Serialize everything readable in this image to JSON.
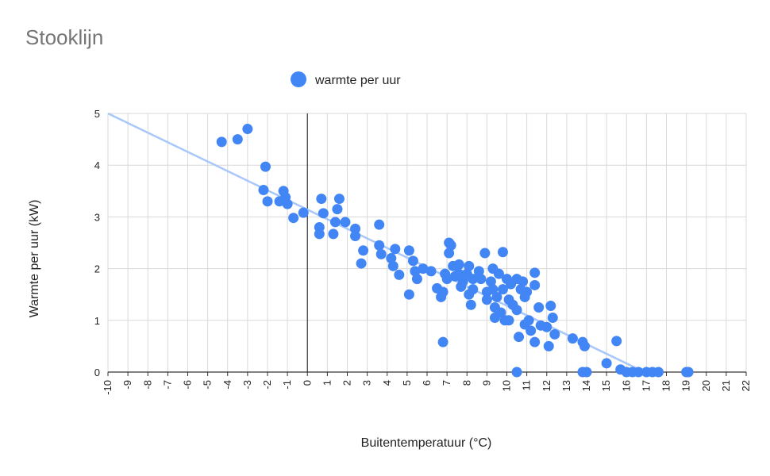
{
  "chart_data": {
    "type": "scatter",
    "title": "Stooklijn",
    "xlabel": "Buitentemperatuur (°C)",
    "ylabel": "Warmte per uur (kW)",
    "xlim": [
      -10,
      22
    ],
    "ylim": [
      0,
      5
    ],
    "x_ticks": [
      "-10",
      "-9",
      "-8",
      "-7",
      "-6",
      "-5",
      "-4",
      "-3",
      "-2",
      "-1",
      "0",
      "1",
      "2",
      "3",
      "4",
      "5",
      "6",
      "7",
      "8",
      "9",
      "10",
      "11",
      "12",
      "13",
      "14",
      "15",
      "16",
      "17",
      "18",
      "19",
      "20",
      "21",
      "22"
    ],
    "y_ticks": [
      "0",
      "1",
      "2",
      "3",
      "4",
      "5"
    ],
    "grid": true,
    "legend_position": "top",
    "colors": {
      "series": "#4285f4",
      "trendline": "#a8c7fa"
    },
    "series": [
      {
        "name": "warmte per uur",
        "points": [
          [
            -4.3,
            4.45
          ],
          [
            -3.5,
            4.5
          ],
          [
            -3.0,
            4.7
          ],
          [
            -2.1,
            3.97
          ],
          [
            -2.2,
            3.52
          ],
          [
            -2.0,
            3.3
          ],
          [
            -1.4,
            3.3
          ],
          [
            -1.2,
            3.5
          ],
          [
            -1.1,
            3.38
          ],
          [
            -1.0,
            3.25
          ],
          [
            -0.7,
            2.98
          ],
          [
            -0.2,
            3.08
          ],
          [
            0.6,
            2.8
          ],
          [
            0.6,
            2.67
          ],
          [
            0.7,
            3.35
          ],
          [
            0.8,
            3.07
          ],
          [
            1.3,
            2.67
          ],
          [
            1.4,
            2.9
          ],
          [
            1.5,
            3.15
          ],
          [
            1.6,
            3.35
          ],
          [
            1.9,
            2.9
          ],
          [
            2.4,
            2.77
          ],
          [
            2.4,
            2.63
          ],
          [
            2.7,
            2.1
          ],
          [
            2.8,
            2.35
          ],
          [
            3.6,
            2.85
          ],
          [
            3.6,
            2.45
          ],
          [
            3.7,
            2.28
          ],
          [
            4.2,
            2.2
          ],
          [
            4.3,
            2.05
          ],
          [
            4.4,
            2.38
          ],
          [
            4.6,
            1.88
          ],
          [
            5.1,
            2.35
          ],
          [
            5.3,
            2.15
          ],
          [
            5.4,
            1.95
          ],
          [
            5.5,
            1.8
          ],
          [
            5.1,
            1.5
          ],
          [
            5.8,
            2.0
          ],
          [
            6.2,
            1.95
          ],
          [
            6.5,
            1.62
          ],
          [
            6.7,
            1.45
          ],
          [
            6.8,
            1.55
          ],
          [
            6.8,
            0.58
          ],
          [
            6.9,
            1.9
          ],
          [
            7.0,
            1.8
          ],
          [
            7.1,
            2.3
          ],
          [
            7.1,
            2.5
          ],
          [
            7.2,
            2.45
          ],
          [
            7.3,
            2.05
          ],
          [
            7.4,
            1.85
          ],
          [
            7.6,
            1.9
          ],
          [
            7.6,
            2.08
          ],
          [
            7.7,
            1.65
          ],
          [
            7.8,
            1.75
          ],
          [
            8.0,
            1.9
          ],
          [
            8.1,
            2.05
          ],
          [
            8.1,
            1.5
          ],
          [
            8.2,
            1.3
          ],
          [
            8.3,
            1.8
          ],
          [
            8.3,
            1.6
          ],
          [
            8.6,
            1.95
          ],
          [
            8.7,
            1.8
          ],
          [
            8.9,
            2.3
          ],
          [
            9.0,
            1.55
          ],
          [
            9.0,
            1.4
          ],
          [
            9.2,
            1.75
          ],
          [
            9.3,
            1.6
          ],
          [
            9.3,
            2.0
          ],
          [
            9.4,
            1.25
          ],
          [
            9.4,
            1.05
          ],
          [
            9.5,
            1.45
          ],
          [
            9.6,
            1.9
          ],
          [
            9.7,
            1.15
          ],
          [
            9.8,
            2.32
          ],
          [
            9.8,
            1.6
          ],
          [
            9.9,
            1.0
          ],
          [
            10.0,
            1.8
          ],
          [
            10.1,
            1.4
          ],
          [
            10.1,
            1.0
          ],
          [
            10.2,
            1.7
          ],
          [
            10.3,
            1.3
          ],
          [
            10.5,
            1.8
          ],
          [
            10.5,
            1.2
          ],
          [
            10.6,
            0.68
          ],
          [
            10.7,
            1.6
          ],
          [
            10.8,
            1.75
          ],
          [
            10.9,
            1.45
          ],
          [
            10.9,
            0.92
          ],
          [
            11.0,
            1.55
          ],
          [
            11.1,
            1.0
          ],
          [
            11.2,
            0.8
          ],
          [
            11.4,
            1.92
          ],
          [
            11.4,
            1.68
          ],
          [
            11.4,
            0.58
          ],
          [
            11.6,
            1.25
          ],
          [
            11.7,
            0.9
          ],
          [
            12.0,
            0.87
          ],
          [
            12.1,
            0.5
          ],
          [
            12.2,
            1.28
          ],
          [
            12.3,
            1.05
          ],
          [
            12.4,
            0.73
          ],
          [
            13.3,
            0.65
          ],
          [
            13.8,
            0.58
          ],
          [
            13.9,
            0.5
          ],
          [
            15.0,
            0.17
          ],
          [
            15.5,
            0.6
          ],
          [
            15.7,
            0.05
          ],
          [
            10.5,
            0.0
          ],
          [
            13.8,
            0.0
          ],
          [
            14.0,
            0.0
          ],
          [
            16.0,
            0.0
          ],
          [
            16.3,
            0.0
          ],
          [
            16.6,
            0.0
          ],
          [
            17.0,
            0.0
          ],
          [
            17.3,
            0.0
          ],
          [
            17.6,
            0.0
          ],
          [
            19.0,
            0.0
          ],
          [
            19.1,
            0.0
          ]
        ]
      }
    ],
    "trendline": {
      "from": [
        -10,
        5.0
      ],
      "to": [
        16.9,
        0.0
      ]
    }
  }
}
